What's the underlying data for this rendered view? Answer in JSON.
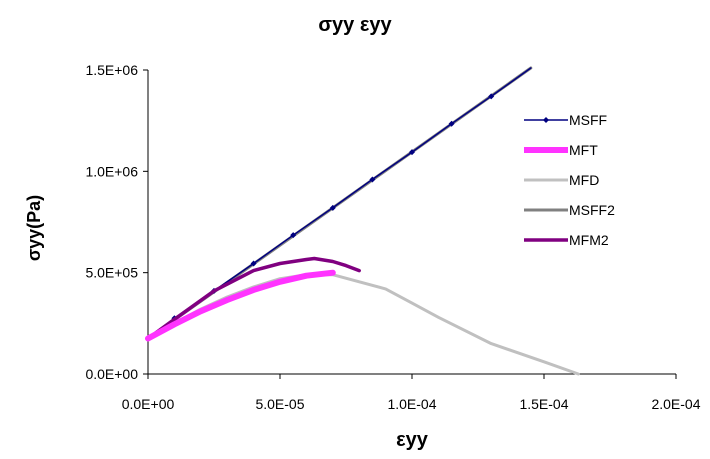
{
  "chart_data": {
    "type": "line",
    "title": "σyy εyy",
    "xlabel": "εyy",
    "ylabel": "σyy(Pa)",
    "xlim": [
      0,
      0.0002
    ],
    "ylim": [
      0,
      1500000
    ],
    "x_ticks": [
      0,
      5e-05,
      0.0001,
      0.00015,
      0.0002
    ],
    "x_tick_labels": [
      "0.0E+00",
      "5.0E-05",
      "1.0E-04",
      "1.5E-04",
      "2.0E-04"
    ],
    "y_ticks": [
      0,
      500000,
      1000000,
      1500000
    ],
    "y_tick_labels": [
      "0.0E+00",
      "5.0E+05",
      "1.0E+06",
      "1.5E+06"
    ],
    "grid": false,
    "legend_position": "right",
    "series": [
      {
        "name": "MSFF",
        "color": "#000080",
        "marker": "diamond",
        "stroke_width": 1.5,
        "points": [
          [
            0,
            175000
          ],
          [
            1e-05,
            275000
          ],
          [
            2.5e-05,
            410000
          ],
          [
            4e-05,
            545000
          ],
          [
            5.5e-05,
            685000
          ],
          [
            7e-05,
            820000
          ],
          [
            8.5e-05,
            960000
          ],
          [
            0.0001,
            1095000
          ],
          [
            0.000115,
            1235000
          ],
          [
            0.00013,
            1370000
          ],
          [
            0.000145,
            1510000
          ]
        ]
      },
      {
        "name": "MFT",
        "color": "#ff33ff",
        "marker": "none",
        "stroke_width": 6,
        "points": [
          [
            0,
            175000
          ],
          [
            1e-05,
            245000
          ],
          [
            2e-05,
            310000
          ],
          [
            3e-05,
            365000
          ],
          [
            4e-05,
            415000
          ],
          [
            5e-05,
            455000
          ],
          [
            6e-05,
            485000
          ],
          [
            7e-05,
            500000
          ]
        ]
      },
      {
        "name": "MFD",
        "color": "#c0c0c0",
        "marker": "none",
        "stroke_width": 3,
        "points": [
          [
            0,
            175000
          ],
          [
            1e-05,
            250000
          ],
          [
            2e-05,
            320000
          ],
          [
            3e-05,
            380000
          ],
          [
            4e-05,
            430000
          ],
          [
            5e-05,
            470000
          ],
          [
            6e-05,
            490000
          ],
          [
            7e-05,
            490000
          ],
          [
            9e-05,
            420000
          ],
          [
            0.0001,
            350000
          ],
          [
            0.00011,
            280000
          ],
          [
            0.00013,
            150000
          ],
          [
            0.00015,
            60000
          ],
          [
            0.000163,
            0
          ]
        ]
      },
      {
        "name": "MSFF2",
        "color": "#808080",
        "marker": "none",
        "stroke_width": 3,
        "points": [
          [
            0,
            175000
          ],
          [
            0.000145,
            1510000
          ]
        ]
      },
      {
        "name": "MFM2",
        "color": "#800080",
        "marker": "none",
        "stroke_width": 3.5,
        "points": [
          [
            0,
            175000
          ],
          [
            1e-05,
            270000
          ],
          [
            2.5e-05,
            410000
          ],
          [
            4e-05,
            510000
          ],
          [
            5e-05,
            545000
          ],
          [
            6e-05,
            565000
          ],
          [
            6.3e-05,
            570000
          ],
          [
            7e-05,
            555000
          ],
          [
            7.5e-05,
            535000
          ],
          [
            8e-05,
            510000
          ]
        ]
      }
    ]
  }
}
